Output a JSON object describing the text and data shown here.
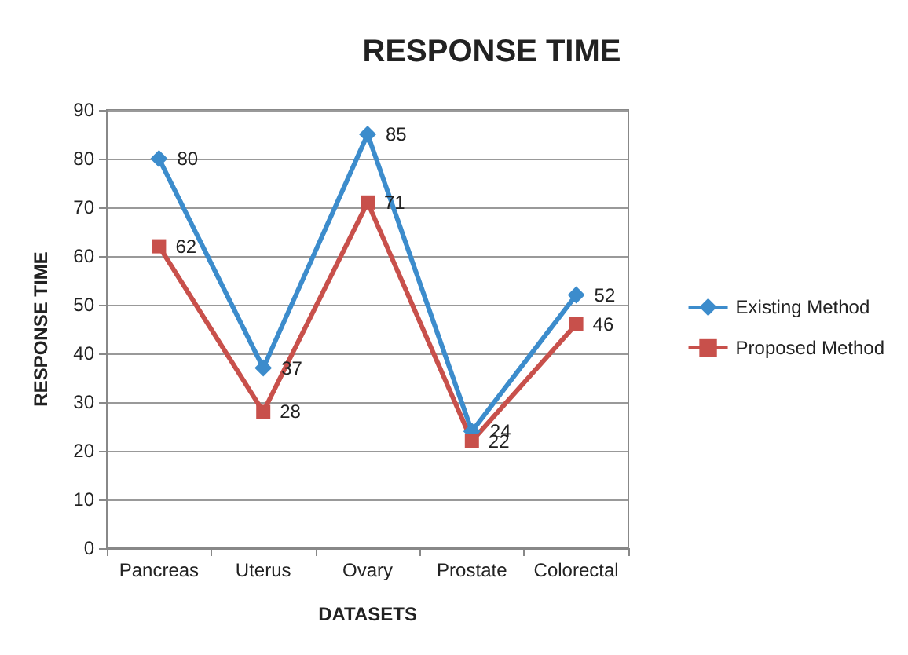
{
  "chart_data": {
    "type": "line",
    "title": "RESPONSE TIME",
    "xlabel": "DATASETS",
    "ylabel": "RESPONSE TIME",
    "categories": [
      "Pancreas",
      "Uterus",
      "Ovary",
      "Prostate",
      "Colorectal"
    ],
    "series": [
      {
        "name": "Existing Method",
        "color": "#3c8ccc",
        "marker": "diamond",
        "values": [
          80,
          37,
          85,
          24,
          52
        ]
      },
      {
        "name": "Proposed Method",
        "color": "#c8504b",
        "marker": "square",
        "values": [
          62,
          28,
          71,
          22,
          46
        ]
      }
    ],
    "ylim": [
      0,
      90
    ],
    "yticks": [
      0,
      10,
      20,
      30,
      40,
      50,
      60,
      70,
      80,
      90
    ],
    "grid": "y",
    "legend": "right",
    "data_labels": true,
    "line_style": "solid"
  }
}
